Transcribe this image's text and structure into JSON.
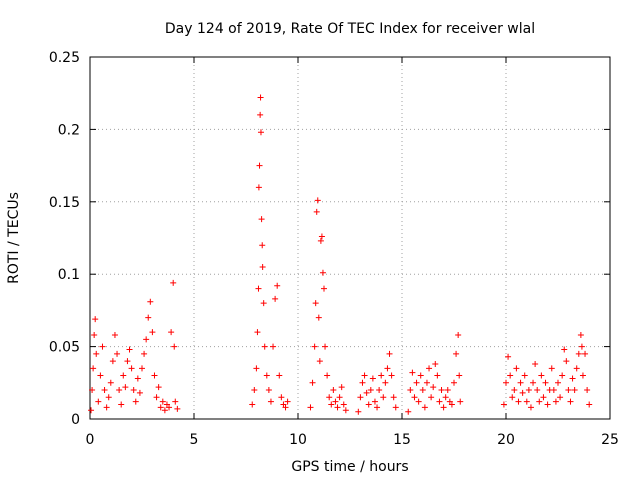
{
  "chart_data": {
    "type": "scatter",
    "title": "Day 124 of 2019, Rate Of TEC Index for receiver wlal",
    "xlabel": "GPS time / hours",
    "ylabel": "ROTI / TECUs",
    "xlim": [
      0,
      25
    ],
    "ylim": [
      0,
      0.25
    ],
    "xticks": [
      0,
      5,
      10,
      15,
      20,
      25
    ],
    "yticks": [
      0,
      0.05,
      0.1,
      0.15,
      0.2,
      0.25
    ],
    "xtick_labels": [
      "0",
      "5",
      "10",
      "15",
      "20",
      "25"
    ],
    "ytick_labels": [
      "0",
      "0.05",
      "0.1",
      "0.15",
      "0.2",
      "0.25"
    ],
    "grid": true,
    "marker": "plus",
    "color": "#ff0000",
    "series": [
      {
        "name": "ROTI",
        "points": [
          [
            0.05,
            0.006
          ],
          [
            0.1,
            0.02
          ],
          [
            0.15,
            0.035
          ],
          [
            0.2,
            0.058
          ],
          [
            0.25,
            0.069
          ],
          [
            0.3,
            0.045
          ],
          [
            0.4,
            0.012
          ],
          [
            0.5,
            0.03
          ],
          [
            0.6,
            0.05
          ],
          [
            0.7,
            0.02
          ],
          [
            0.8,
            0.008
          ],
          [
            0.9,
            0.015
          ],
          [
            1.0,
            0.025
          ],
          [
            1.1,
            0.04
          ],
          [
            1.2,
            0.058
          ],
          [
            1.3,
            0.045
          ],
          [
            1.4,
            0.02
          ],
          [
            1.5,
            0.01
          ],
          [
            1.6,
            0.03
          ],
          [
            1.7,
            0.022
          ],
          [
            1.8,
            0.04
          ],
          [
            1.9,
            0.048
          ],
          [
            2.0,
            0.035
          ],
          [
            2.1,
            0.02
          ],
          [
            2.2,
            0.012
          ],
          [
            2.3,
            0.028
          ],
          [
            2.4,
            0.018
          ],
          [
            2.5,
            0.035
          ],
          [
            2.6,
            0.045
          ],
          [
            2.7,
            0.055
          ],
          [
            2.8,
            0.07
          ],
          [
            2.9,
            0.081
          ],
          [
            3.0,
            0.06
          ],
          [
            3.1,
            0.03
          ],
          [
            3.2,
            0.015
          ],
          [
            3.3,
            0.022
          ],
          [
            3.4,
            0.008
          ],
          [
            3.5,
            0.012
          ],
          [
            3.6,
            0.006
          ],
          [
            3.7,
            0.01
          ],
          [
            3.8,
            0.008
          ],
          [
            3.9,
            0.06
          ],
          [
            4.0,
            0.094
          ],
          [
            4.05,
            0.05
          ],
          [
            4.1,
            0.012
          ],
          [
            4.2,
            0.007
          ],
          [
            7.8,
            0.01
          ],
          [
            7.9,
            0.02
          ],
          [
            8.0,
            0.035
          ],
          [
            8.05,
            0.06
          ],
          [
            8.1,
            0.09
          ],
          [
            8.12,
            0.16
          ],
          [
            8.15,
            0.175
          ],
          [
            8.18,
            0.21
          ],
          [
            8.2,
            0.222
          ],
          [
            8.22,
            0.198
          ],
          [
            8.25,
            0.138
          ],
          [
            8.28,
            0.12
          ],
          [
            8.3,
            0.105
          ],
          [
            8.35,
            0.08
          ],
          [
            8.4,
            0.05
          ],
          [
            8.5,
            0.03
          ],
          [
            8.6,
            0.02
          ],
          [
            8.7,
            0.012
          ],
          [
            8.8,
            0.05
          ],
          [
            8.9,
            0.083
          ],
          [
            9.0,
            0.092
          ],
          [
            9.1,
            0.03
          ],
          [
            9.2,
            0.015
          ],
          [
            9.3,
            0.01
          ],
          [
            9.4,
            0.008
          ],
          [
            9.5,
            0.012
          ],
          [
            10.6,
            0.008
          ],
          [
            10.7,
            0.025
          ],
          [
            10.8,
            0.05
          ],
          [
            10.85,
            0.08
          ],
          [
            10.9,
            0.143
          ],
          [
            10.95,
            0.151
          ],
          [
            11.0,
            0.07
          ],
          [
            11.05,
            0.04
          ],
          [
            11.1,
            0.123
          ],
          [
            11.15,
            0.126
          ],
          [
            11.2,
            0.101
          ],
          [
            11.25,
            0.09
          ],
          [
            11.3,
            0.05
          ],
          [
            11.4,
            0.03
          ],
          [
            11.5,
            0.015
          ],
          [
            11.6,
            0.01
          ],
          [
            11.7,
            0.02
          ],
          [
            11.8,
            0.012
          ],
          [
            11.9,
            0.008
          ],
          [
            12.0,
            0.015
          ],
          [
            12.1,
            0.022
          ],
          [
            12.2,
            0.01
          ],
          [
            12.3,
            0.006
          ],
          [
            12.9,
            0.005
          ],
          [
            13.0,
            0.015
          ],
          [
            13.1,
            0.025
          ],
          [
            13.2,
            0.03
          ],
          [
            13.3,
            0.018
          ],
          [
            13.4,
            0.01
          ],
          [
            13.5,
            0.02
          ],
          [
            13.6,
            0.028
          ],
          [
            13.7,
            0.012
          ],
          [
            13.8,
            0.008
          ],
          [
            13.9,
            0.02
          ],
          [
            14.0,
            0.03
          ],
          [
            14.1,
            0.015
          ],
          [
            14.2,
            0.025
          ],
          [
            14.3,
            0.035
          ],
          [
            14.4,
            0.045
          ],
          [
            14.5,
            0.03
          ],
          [
            14.6,
            0.015
          ],
          [
            14.7,
            0.008
          ],
          [
            15.3,
            0.005
          ],
          [
            15.4,
            0.02
          ],
          [
            15.5,
            0.032
          ],
          [
            15.6,
            0.015
          ],
          [
            15.7,
            0.025
          ],
          [
            15.8,
            0.012
          ],
          [
            15.9,
            0.03
          ],
          [
            16.0,
            0.02
          ],
          [
            16.1,
            0.008
          ],
          [
            16.2,
            0.025
          ],
          [
            16.3,
            0.035
          ],
          [
            16.4,
            0.015
          ],
          [
            16.5,
            0.022
          ],
          [
            16.6,
            0.038
          ],
          [
            16.7,
            0.03
          ],
          [
            16.8,
            0.012
          ],
          [
            16.9,
            0.02
          ],
          [
            17.0,
            0.008
          ],
          [
            17.1,
            0.015
          ],
          [
            17.2,
            0.02
          ],
          [
            17.3,
            0.012
          ],
          [
            17.4,
            0.01
          ],
          [
            17.5,
            0.025
          ],
          [
            17.6,
            0.045
          ],
          [
            17.7,
            0.058
          ],
          [
            17.75,
            0.03
          ],
          [
            17.8,
            0.012
          ],
          [
            19.9,
            0.01
          ],
          [
            20.0,
            0.025
          ],
          [
            20.1,
            0.043
          ],
          [
            20.2,
            0.03
          ],
          [
            20.3,
            0.015
          ],
          [
            20.4,
            0.02
          ],
          [
            20.5,
            0.035
          ],
          [
            20.6,
            0.012
          ],
          [
            20.7,
            0.025
          ],
          [
            20.8,
            0.018
          ],
          [
            20.9,
            0.03
          ],
          [
            21.0,
            0.012
          ],
          [
            21.1,
            0.02
          ],
          [
            21.2,
            0.008
          ],
          [
            21.3,
            0.025
          ],
          [
            21.4,
            0.038
          ],
          [
            21.5,
            0.02
          ],
          [
            21.6,
            0.012
          ],
          [
            21.7,
            0.03
          ],
          [
            21.8,
            0.015
          ],
          [
            21.9,
            0.025
          ],
          [
            22.0,
            0.01
          ],
          [
            22.1,
            0.02
          ],
          [
            22.2,
            0.035
          ],
          [
            22.3,
            0.02
          ],
          [
            22.4,
            0.012
          ],
          [
            22.5,
            0.025
          ],
          [
            22.6,
            0.015
          ],
          [
            22.7,
            0.03
          ],
          [
            22.8,
            0.048
          ],
          [
            22.9,
            0.04
          ],
          [
            23.0,
            0.02
          ],
          [
            23.1,
            0.012
          ],
          [
            23.2,
            0.028
          ],
          [
            23.3,
            0.02
          ],
          [
            23.4,
            0.035
          ],
          [
            23.5,
            0.045
          ],
          [
            23.6,
            0.058
          ],
          [
            23.65,
            0.05
          ],
          [
            23.7,
            0.03
          ],
          [
            23.8,
            0.045
          ],
          [
            23.9,
            0.02
          ],
          [
            24.0,
            0.01
          ]
        ]
      }
    ]
  }
}
